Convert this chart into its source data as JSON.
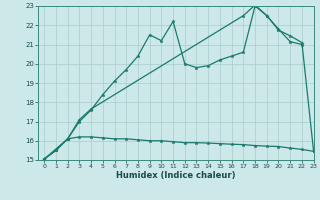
{
  "xlabel": "Humidex (Indice chaleur)",
  "xlim": [
    -0.5,
    23
  ],
  "ylim": [
    15,
    23
  ],
  "xticks": [
    0,
    1,
    2,
    3,
    4,
    5,
    6,
    7,
    8,
    9,
    10,
    11,
    12,
    13,
    14,
    15,
    16,
    17,
    18,
    19,
    20,
    21,
    22,
    23
  ],
  "yticks": [
    15,
    16,
    17,
    18,
    19,
    20,
    21,
    22,
    23
  ],
  "bg_color": "#cce8e8",
  "grid_color": "#aacccc",
  "line_color": "#1a7a6e",
  "line1_x": [
    0,
    1,
    2,
    3,
    4,
    5,
    6,
    7,
    8,
    9,
    10,
    11,
    12,
    13,
    14,
    15,
    16,
    17,
    18,
    19,
    20,
    21,
    22,
    23
  ],
  "line1_y": [
    15.05,
    15.5,
    16.1,
    16.2,
    16.2,
    16.15,
    16.1,
    16.1,
    16.05,
    16.0,
    16.0,
    15.95,
    15.9,
    15.9,
    15.88,
    15.85,
    15.82,
    15.8,
    15.75,
    15.72,
    15.7,
    15.62,
    15.55,
    15.45
  ],
  "line2_x": [
    0,
    1,
    2,
    3,
    4,
    5,
    6,
    7,
    8,
    9,
    10,
    11,
    12,
    13,
    14,
    15,
    16,
    17,
    18,
    19,
    20,
    21,
    22
  ],
  "line2_y": [
    15.05,
    15.5,
    16.1,
    17.0,
    17.6,
    18.4,
    19.1,
    19.7,
    20.4,
    21.5,
    21.2,
    22.2,
    20.0,
    19.8,
    19.9,
    20.2,
    20.4,
    20.6,
    23.0,
    22.5,
    21.8,
    21.15,
    21.0
  ],
  "line3_x": [
    0,
    2,
    3,
    4,
    17,
    18,
    19,
    20,
    21,
    22,
    23
  ],
  "line3_y": [
    15.05,
    16.1,
    17.1,
    17.65,
    22.5,
    23.05,
    22.5,
    21.75,
    21.45,
    21.1,
    15.45
  ]
}
